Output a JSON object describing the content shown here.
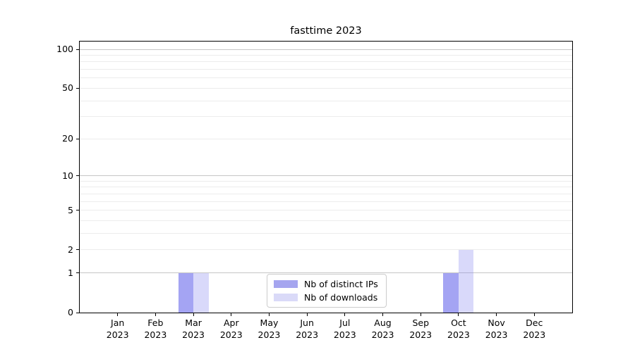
{
  "chart_data": {
    "type": "bar",
    "title": "fasttime 2023",
    "xlabel": "",
    "ylabel": "",
    "categories": [
      "Jan",
      "Feb",
      "Mar",
      "Apr",
      "May",
      "Jun",
      "Jul",
      "Aug",
      "Sep",
      "Oct",
      "Nov",
      "Dec"
    ],
    "year_label": "2023",
    "series": [
      {
        "name": "Nb of distinct IPs",
        "values": [
          0,
          0,
          1,
          0,
          0,
          0,
          0,
          0,
          0,
          1,
          0,
          0
        ],
        "fill": "rgba(130,130,238,0.73)",
        "legend_fill": "#a5a5ef"
      },
      {
        "name": "Nb of downloads",
        "values": [
          0,
          0,
          1,
          0,
          0,
          0,
          0,
          0,
          0,
          2,
          0,
          0
        ],
        "fill": "rgba(130,130,238,0.30)",
        "legend_fill": "#dadaf8"
      }
    ],
    "yscale": "log1p",
    "y_tick_labels": [
      0,
      1,
      2,
      5,
      10,
      20,
      50,
      100
    ],
    "y_grid_major": [
      1,
      10,
      100
    ],
    "y_grid_minor": [
      2,
      3,
      4,
      5,
      6,
      7,
      8,
      9,
      20,
      30,
      40,
      50,
      60,
      70,
      80,
      90
    ],
    "ylim": [
      0,
      115
    ],
    "grid": true,
    "legend_position": "lower center"
  },
  "colors": {
    "background": "#ffffff",
    "axis": "#000000",
    "grid_major": "#c6c6c6",
    "grid_minor": "#ececec",
    "legend_border": "#cccccc"
  }
}
